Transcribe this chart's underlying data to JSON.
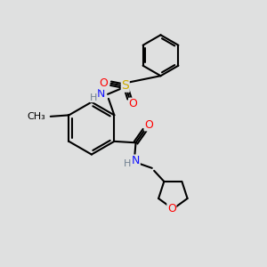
{
  "bg_color": "#dfe0e0",
  "bond_color": "#000000",
  "bond_width": 1.5,
  "atom_colors": {
    "C": "#000000",
    "H": "#708090",
    "N": "#1414ff",
    "O": "#ff0000",
    "S": "#ccaa00"
  },
  "font_size": 9
}
